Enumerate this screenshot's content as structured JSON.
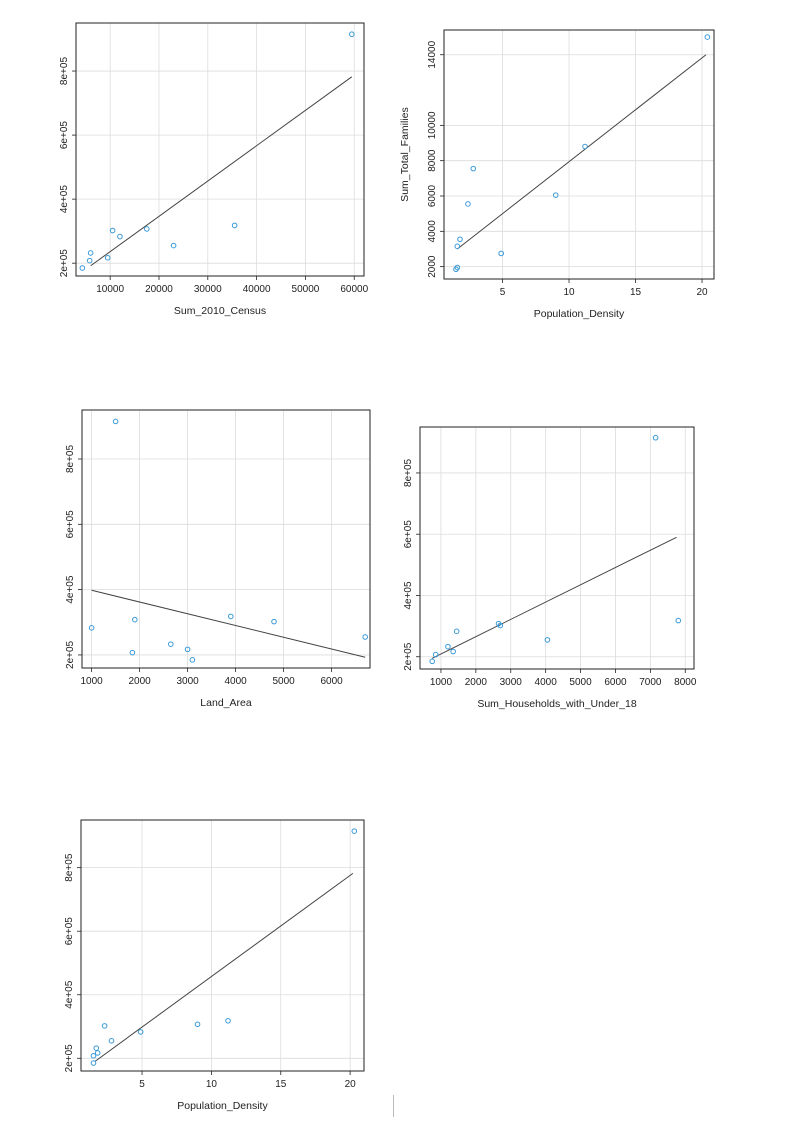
{
  "chart_data": [
    {
      "type": "scatter",
      "xlabel": "Sum_2010_Census",
      "ylabel": "",
      "xlim": [
        3000,
        62000
      ],
      "ylim": [
        160000,
        950000
      ],
      "xticks": [
        10000,
        20000,
        30000,
        40000,
        50000,
        60000
      ],
      "xtick_labels": [
        "10000",
        "20000",
        "30000",
        "40000",
        "50000",
        "60000"
      ],
      "yticks": [
        200000,
        400000,
        600000,
        800000
      ],
      "ytick_labels": [
        "2e+05",
        "4e+05",
        "6e+05",
        "8e+05"
      ],
      "points": [
        [
          4300,
          185000
        ],
        [
          5800,
          208000
        ],
        [
          6000,
          232000
        ],
        [
          9500,
          217000
        ],
        [
          10500,
          302000
        ],
        [
          12000,
          283000
        ],
        [
          17500,
          307000
        ],
        [
          23000,
          255000
        ],
        [
          35500,
          318000
        ],
        [
          59500,
          915000
        ]
      ],
      "fit": [
        [
          6000,
          192000
        ],
        [
          59500,
          782000
        ]
      ]
    },
    {
      "type": "scatter",
      "xlabel": "Population_Density",
      "ylabel": "Sum_Total_Families",
      "xlim": [
        0.6,
        20.9
      ],
      "ylim": [
        1300,
        15400
      ],
      "xticks": [
        5,
        10,
        15,
        20
      ],
      "xtick_labels": [
        "5",
        "10",
        "15",
        "20"
      ],
      "yticks": [
        2000,
        4000,
        6000,
        8000,
        10000,
        14000
      ],
      "ytick_labels": [
        "2000",
        "4000",
        "6000",
        "8000",
        "10000",
        "14000"
      ],
      "points": [
        [
          1.5,
          1850
        ],
        [
          1.6,
          1950
        ],
        [
          1.6,
          3150
        ],
        [
          1.8,
          3550
        ],
        [
          2.4,
          5550
        ],
        [
          2.8,
          7550
        ],
        [
          4.9,
          2750
        ],
        [
          9.0,
          6050
        ],
        [
          11.2,
          8800
        ],
        [
          20.4,
          15000
        ]
      ],
      "fit": [
        [
          1.6,
          3000
        ],
        [
          20.3,
          14000
        ]
      ]
    },
    {
      "type": "scatter",
      "xlabel": "Land_Area",
      "ylabel": "",
      "xlim": [
        800,
        6800
      ],
      "ylim": [
        160000,
        950000
      ],
      "xticks": [
        1000,
        2000,
        3000,
        4000,
        5000,
        6000
      ],
      "xtick_labels": [
        "1000",
        "2000",
        "3000",
        "4000",
        "5000",
        "6000"
      ],
      "yticks": [
        200000,
        400000,
        600000,
        800000
      ],
      "ytick_labels": [
        "2e+05",
        "4e+05",
        "6e+05",
        "8e+05"
      ],
      "points": [
        [
          1000,
          283000
        ],
        [
          1500,
          915000
        ],
        [
          1850,
          207000
        ],
        [
          1900,
          308000
        ],
        [
          2650,
          233000
        ],
        [
          3000,
          217000
        ],
        [
          3100,
          185000
        ],
        [
          3900,
          318000
        ],
        [
          4800,
          302000
        ],
        [
          6700,
          255000
        ]
      ],
      "fit": [
        [
          1000,
          398000
        ],
        [
          6700,
          193000
        ]
      ]
    },
    {
      "type": "scatter",
      "xlabel": "Sum_Households_with_Under_18",
      "ylabel": "",
      "xlim": [
        400,
        8250
      ],
      "ylim": [
        160000,
        950000
      ],
      "xticks": [
        1000,
        2000,
        3000,
        4000,
        5000,
        6000,
        7000,
        8000
      ],
      "xtick_labels": [
        "1000",
        "2000",
        "3000",
        "4000",
        "5000",
        "6000",
        "7000",
        "8000"
      ],
      "yticks": [
        200000,
        400000,
        600000,
        800000
      ],
      "ytick_labels": [
        "2e+05",
        "4e+05",
        "6e+05",
        "8e+05"
      ],
      "points": [
        [
          750,
          185000
        ],
        [
          850,
          207000
        ],
        [
          1200,
          233000
        ],
        [
          1350,
          217000
        ],
        [
          1450,
          283000
        ],
        [
          2650,
          308000
        ],
        [
          2700,
          302000
        ],
        [
          4050,
          255000
        ],
        [
          7150,
          915000
        ],
        [
          7800,
          318000
        ]
      ],
      "fit": [
        [
          750,
          195000
        ],
        [
          7750,
          590000
        ]
      ]
    },
    {
      "type": "scatter",
      "xlabel": "Population_Density",
      "ylabel": "",
      "xlim": [
        0.6,
        21.0
      ],
      "ylim": [
        160000,
        950000
      ],
      "xticks": [
        5,
        10,
        15,
        20
      ],
      "xtick_labels": [
        "5",
        "10",
        "15",
        "20"
      ],
      "yticks": [
        200000,
        400000,
        600000,
        800000
      ],
      "ytick_labels": [
        "2e+05",
        "4e+05",
        "6e+05",
        "8e+05"
      ],
      "points": [
        [
          1.5,
          185000
        ],
        [
          1.5,
          208000
        ],
        [
          1.7,
          232000
        ],
        [
          1.8,
          217000
        ],
        [
          2.3,
          302000
        ],
        [
          2.8,
          255000
        ],
        [
          4.9,
          283000
        ],
        [
          9.0,
          307000
        ],
        [
          11.2,
          318000
        ],
        [
          20.3,
          915000
        ]
      ],
      "fit": [
        [
          1.6,
          190000
        ],
        [
          20.2,
          782000
        ]
      ]
    }
  ]
}
